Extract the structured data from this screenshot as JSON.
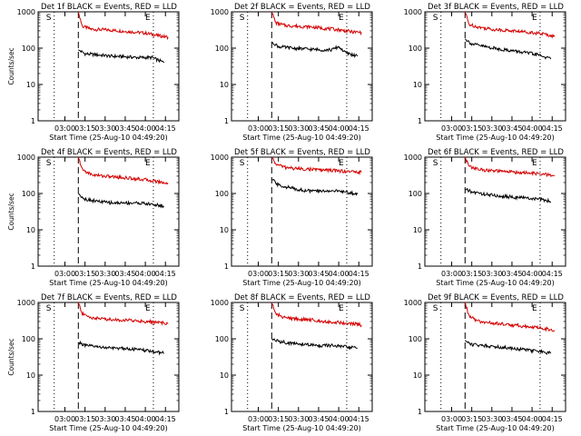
{
  "chart_data": [
    {
      "type": "line",
      "title": "Det 1f BLACK = Events, RED = LLD",
      "ylabel": "Counts/sec",
      "xlabel": "Start Time (25-Aug-10 04:49:20)",
      "yscale": "log",
      "ylim": [
        1,
        1000
      ],
      "y_ticks": [
        "1",
        "10",
        "100",
        "1000"
      ],
      "x_ticks": [
        "03:00",
        "03:15",
        "03:30",
        "03:45",
        "04:00",
        "04:15"
      ],
      "markers": [
        {
          "label": "S",
          "style": "dotted",
          "x": "02:52"
        },
        {
          "label": "",
          "style": "dashed",
          "x": "03:10"
        },
        {
          "label": "E",
          "style": "dotted",
          "x": "04:06"
        }
      ],
      "series": [
        {
          "name": "RED = LLD",
          "color": "#d40000",
          "points": [
            [
              "03:10",
              1000
            ],
            [
              "03:13",
              400
            ],
            [
              "03:20",
              330
            ],
            [
              "03:30",
              320
            ],
            [
              "03:40",
              300
            ],
            [
              "03:50",
              280
            ],
            [
              "04:00",
              260
            ],
            [
              "04:10",
              220
            ],
            [
              "04:17",
              200
            ]
          ]
        },
        {
          "name": "BLACK = Events",
          "color": "#000000",
          "points": [
            [
              "03:10",
              90
            ],
            [
              "03:15",
              70
            ],
            [
              "03:25",
              65
            ],
            [
              "03:35",
              60
            ],
            [
              "03:45",
              58
            ],
            [
              "03:55",
              55
            ],
            [
              "04:05",
              55
            ],
            [
              "04:14",
              40
            ]
          ]
        }
      ]
    },
    {
      "type": "line",
      "title": "Det 2f BLACK = Events, RED = LLD",
      "ylabel": "",
      "xlabel": "Start Time (25-Aug-10 04:49:20)",
      "yscale": "log",
      "ylim": [
        1,
        1000
      ],
      "y_ticks": [
        "1",
        "10",
        "100",
        "1000"
      ],
      "x_ticks": [
        "03:00",
        "03:15",
        "03:30",
        "03:45",
        "04:00",
        "04:15"
      ],
      "markers": [
        {
          "label": "S",
          "style": "dotted",
          "x": "02:52"
        },
        {
          "label": "",
          "style": "dashed",
          "x": "03:10"
        },
        {
          "label": "E",
          "style": "dotted",
          "x": "04:06"
        }
      ],
      "series": [
        {
          "name": "RED = LLD",
          "color": "#d40000",
          "points": [
            [
              "03:10",
              1000
            ],
            [
              "03:13",
              500
            ],
            [
              "03:20",
              420
            ],
            [
              "03:30",
              400
            ],
            [
              "03:40",
              380
            ],
            [
              "03:50",
              350
            ],
            [
              "04:00",
              320
            ],
            [
              "04:10",
              280
            ],
            [
              "04:17",
              270
            ]
          ]
        },
        {
          "name": "BLACK = Events",
          "color": "#000000",
          "points": [
            [
              "03:10",
              150
            ],
            [
              "03:15",
              110
            ],
            [
              "03:25",
              100
            ],
            [
              "03:35",
              95
            ],
            [
              "03:45",
              90
            ],
            [
              "03:55",
              90
            ],
            [
              "04:00",
              110
            ],
            [
              "04:05",
              75
            ],
            [
              "04:14",
              60
            ]
          ]
        }
      ]
    },
    {
      "type": "line",
      "title": "Det 3f BLACK = Events, RED = LLD",
      "ylabel": "",
      "xlabel": "Start Time (25-Aug-10 04:49:20)",
      "yscale": "log",
      "ylim": [
        1,
        1000
      ],
      "y_ticks": [
        "1",
        "10",
        "100",
        "1000"
      ],
      "x_ticks": [
        "03:00",
        "03:15",
        "03:30",
        "03:45",
        "04:00",
        "04:15"
      ],
      "markers": [
        {
          "label": "S",
          "style": "dotted",
          "x": "02:52"
        },
        {
          "label": "",
          "style": "dashed",
          "x": "03:10"
        },
        {
          "label": "E",
          "style": "dotted",
          "x": "04:06"
        }
      ],
      "series": [
        {
          "name": "RED = LLD",
          "color": "#d40000",
          "points": [
            [
              "03:10",
              1000
            ],
            [
              "03:13",
              450
            ],
            [
              "03:20",
              380
            ],
            [
              "03:30",
              330
            ],
            [
              "03:40",
              310
            ],
            [
              "03:50",
              290
            ],
            [
              "04:00",
              270
            ],
            [
              "04:10",
              240
            ],
            [
              "04:17",
              210
            ]
          ]
        },
        {
          "name": "BLACK = Events",
          "color": "#000000",
          "points": [
            [
              "03:10",
              180
            ],
            [
              "03:15",
              130
            ],
            [
              "03:25",
              110
            ],
            [
              "03:35",
              95
            ],
            [
              "03:45",
              85
            ],
            [
              "03:55",
              75
            ],
            [
              "04:05",
              65
            ],
            [
              "04:14",
              50
            ]
          ]
        }
      ]
    },
    {
      "type": "line",
      "title": "Det 4f BLACK = Events, RED = LLD",
      "ylabel": "Counts/sec",
      "xlabel": "Start Time (25-Aug-10 04:49:20)",
      "yscale": "log",
      "ylim": [
        1,
        1000
      ],
      "y_ticks": [
        "1",
        "10",
        "100",
        "1000"
      ],
      "x_ticks": [
        "03:00",
        "03:15",
        "03:30",
        "03:45",
        "04:00",
        "04:15"
      ],
      "markers": [
        {
          "label": "S",
          "style": "dotted",
          "x": "02:52"
        },
        {
          "label": "",
          "style": "dashed",
          "x": "03:10"
        },
        {
          "label": "E",
          "style": "dotted",
          "x": "04:06"
        }
      ],
      "series": [
        {
          "name": "RED = LLD",
          "color": "#d40000",
          "points": [
            [
              "03:10",
              1000
            ],
            [
              "03:13",
              450
            ],
            [
              "03:20",
              330
            ],
            [
              "03:30",
              300
            ],
            [
              "03:40",
              280
            ],
            [
              "03:50",
              260
            ],
            [
              "04:00",
              240
            ],
            [
              "04:10",
              210
            ],
            [
              "04:17",
              190
            ]
          ]
        },
        {
          "name": "BLACK = Events",
          "color": "#000000",
          "points": [
            [
              "03:10",
              100
            ],
            [
              "03:15",
              70
            ],
            [
              "03:25",
              60
            ],
            [
              "03:35",
              55
            ],
            [
              "03:45",
              55
            ],
            [
              "03:55",
              55
            ],
            [
              "04:05",
              50
            ],
            [
              "04:14",
              45
            ]
          ]
        }
      ]
    },
    {
      "type": "line",
      "title": "Det 5f BLACK = Events, RED = LLD",
      "ylabel": "",
      "xlabel": "Start Time (25-Aug-10 04:49:20)",
      "yscale": "log",
      "ylim": [
        1,
        1000
      ],
      "y_ticks": [
        "1",
        "10",
        "100",
        "1000"
      ],
      "x_ticks": [
        "03:00",
        "03:15",
        "03:30",
        "03:45",
        "04:00",
        "04:15"
      ],
      "markers": [
        {
          "label": "S",
          "style": "dotted",
          "x": "02:52"
        },
        {
          "label": "",
          "style": "dashed",
          "x": "03:10"
        },
        {
          "label": "E",
          "style": "dotted",
          "x": "04:06"
        }
      ],
      "series": [
        {
          "name": "RED = LLD",
          "color": "#d40000",
          "points": [
            [
              "03:10",
              1000
            ],
            [
              "03:13",
              650
            ],
            [
              "03:20",
              520
            ],
            [
              "03:30",
              480
            ],
            [
              "03:40",
              460
            ],
            [
              "03:50",
              440
            ],
            [
              "04:00",
              420
            ],
            [
              "04:10",
              400
            ],
            [
              "04:17",
              380
            ]
          ]
        },
        {
          "name": "BLACK = Events",
          "color": "#000000",
          "points": [
            [
              "03:10",
              250
            ],
            [
              "03:15",
              170
            ],
            [
              "03:25",
              140
            ],
            [
              "03:35",
              120
            ],
            [
              "03:45",
              115
            ],
            [
              "03:55",
              120
            ],
            [
              "04:05",
              110
            ],
            [
              "04:14",
              95
            ]
          ]
        }
      ]
    },
    {
      "type": "line",
      "title": "Det 6f BLACK = Events, RED = LLD",
      "ylabel": "",
      "xlabel": "Start Time (25-Aug-10 04:49:20)",
      "yscale": "log",
      "ylim": [
        1,
        1000
      ],
      "y_ticks": [
        "1",
        "10",
        "100",
        "1000"
      ],
      "x_ticks": [
        "03:00",
        "03:15",
        "03:30",
        "03:45",
        "04:00",
        "04:15"
      ],
      "markers": [
        {
          "label": "S",
          "style": "dotted",
          "x": "02:52"
        },
        {
          "label": "",
          "style": "dashed",
          "x": "03:10"
        },
        {
          "label": "E",
          "style": "dotted",
          "x": "04:06"
        }
      ],
      "series": [
        {
          "name": "RED = LLD",
          "color": "#d40000",
          "points": [
            [
              "03:10",
              1000
            ],
            [
              "03:13",
              550
            ],
            [
              "03:20",
              460
            ],
            [
              "03:30",
              420
            ],
            [
              "03:40",
              400
            ],
            [
              "03:50",
              380
            ],
            [
              "04:00",
              360
            ],
            [
              "04:10",
              330
            ],
            [
              "04:17",
              310
            ]
          ]
        },
        {
          "name": "BLACK = Events",
          "color": "#000000",
          "points": [
            [
              "03:10",
              130
            ],
            [
              "03:15",
              110
            ],
            [
              "03:25",
              95
            ],
            [
              "03:35",
              85
            ],
            [
              "03:45",
              80
            ],
            [
              "03:55",
              75
            ],
            [
              "04:05",
              70
            ],
            [
              "04:14",
              60
            ]
          ]
        }
      ]
    },
    {
      "type": "line",
      "title": "Det 7f BLACK = Events, RED = LLD",
      "ylabel": "Counts/sec",
      "xlabel": "Start Time (25-Aug-10 04:49:20)",
      "yscale": "log",
      "ylim": [
        1,
        1000
      ],
      "y_ticks": [
        "1",
        "10",
        "100",
        "1000"
      ],
      "x_ticks": [
        "03:00",
        "03:15",
        "03:30",
        "03:45",
        "04:00",
        "04:15"
      ],
      "markers": [
        {
          "label": "S",
          "style": "dotted",
          "x": "02:52"
        },
        {
          "label": "",
          "style": "dashed",
          "x": "03:10"
        },
        {
          "label": "E",
          "style": "dotted",
          "x": "04:06"
        }
      ],
      "series": [
        {
          "name": "RED = LLD",
          "color": "#d40000",
          "points": [
            [
              "03:10",
              1000
            ],
            [
              "03:13",
              480
            ],
            [
              "03:20",
              380
            ],
            [
              "03:30",
              350
            ],
            [
              "03:40",
              330
            ],
            [
              "03:50",
              320
            ],
            [
              "04:00",
              300
            ],
            [
              "04:10",
              280
            ],
            [
              "04:17",
              260
            ]
          ]
        },
        {
          "name": "BLACK = Events",
          "color": "#000000",
          "points": [
            [
              "03:10",
              80
            ],
            [
              "03:15",
              65
            ],
            [
              "03:25",
              60
            ],
            [
              "03:35",
              55
            ],
            [
              "03:45",
              55
            ],
            [
              "03:55",
              50
            ],
            [
              "04:05",
              45
            ],
            [
              "04:14",
              40
            ]
          ]
        }
      ]
    },
    {
      "type": "line",
      "title": "Det 8f BLACK = Events, RED = LLD",
      "ylabel": "",
      "xlabel": "Start Time (25-Aug-10 04:49:20)",
      "yscale": "log",
      "ylim": [
        1,
        1000
      ],
      "y_ticks": [
        "1",
        "10",
        "100",
        "1000"
      ],
      "x_ticks": [
        "03:00",
        "03:15",
        "03:30",
        "03:45",
        "04:00",
        "04:15"
      ],
      "markers": [
        {
          "label": "S",
          "style": "dotted",
          "x": "02:52"
        },
        {
          "label": "",
          "style": "dashed",
          "x": "03:10"
        },
        {
          "label": "E",
          "style": "dotted",
          "x": "04:06"
        }
      ],
      "series": [
        {
          "name": "RED = LLD",
          "color": "#d40000",
          "points": [
            [
              "03:10",
              1000
            ],
            [
              "03:13",
              480
            ],
            [
              "03:20",
              380
            ],
            [
              "03:30",
              350
            ],
            [
              "03:40",
              330
            ],
            [
              "03:50",
              300
            ],
            [
              "04:00",
              280
            ],
            [
              "04:10",
              260
            ],
            [
              "04:17",
              240
            ]
          ]
        },
        {
          "name": "BLACK = Events",
          "color": "#000000",
          "points": [
            [
              "03:10",
              100
            ],
            [
              "03:15",
              85
            ],
            [
              "03:25",
              75
            ],
            [
              "03:35",
              70
            ],
            [
              "03:45",
              65
            ],
            [
              "03:55",
              65
            ],
            [
              "04:05",
              60
            ],
            [
              "04:14",
              55
            ]
          ]
        }
      ]
    },
    {
      "type": "line",
      "title": "Det 9f BLACK = Events, RED = LLD",
      "ylabel": "",
      "xlabel": "Start Time (25-Aug-10 04:49:20)",
      "yscale": "log",
      "ylim": [
        1,
        1000
      ],
      "y_ticks": [
        "1",
        "10",
        "100",
        "1000"
      ],
      "x_ticks": [
        "03:00",
        "03:15",
        "03:30",
        "03:45",
        "04:00",
        "04:15"
      ],
      "markers": [
        {
          "label": "S",
          "style": "dotted",
          "x": "02:52"
        },
        {
          "label": "",
          "style": "dashed",
          "x": "03:10"
        },
        {
          "label": "E",
          "style": "dotted",
          "x": "04:06"
        }
      ],
      "series": [
        {
          "name": "RED = LLD",
          "color": "#d40000",
          "points": [
            [
              "03:10",
              1000
            ],
            [
              "03:13",
              420
            ],
            [
              "03:20",
              300
            ],
            [
              "03:30",
              270
            ],
            [
              "03:40",
              250
            ],
            [
              "03:50",
              230
            ],
            [
              "04:00",
              210
            ],
            [
              "04:10",
              190
            ],
            [
              "04:17",
              170
            ]
          ]
        },
        {
          "name": "BLACK = Events",
          "color": "#000000",
          "points": [
            [
              "03:10",
              90
            ],
            [
              "03:15",
              70
            ],
            [
              "03:25",
              65
            ],
            [
              "03:35",
              60
            ],
            [
              "03:45",
              55
            ],
            [
              "03:55",
              50
            ],
            [
              "04:05",
              45
            ],
            [
              "04:14",
              40
            ]
          ]
        }
      ]
    }
  ]
}
